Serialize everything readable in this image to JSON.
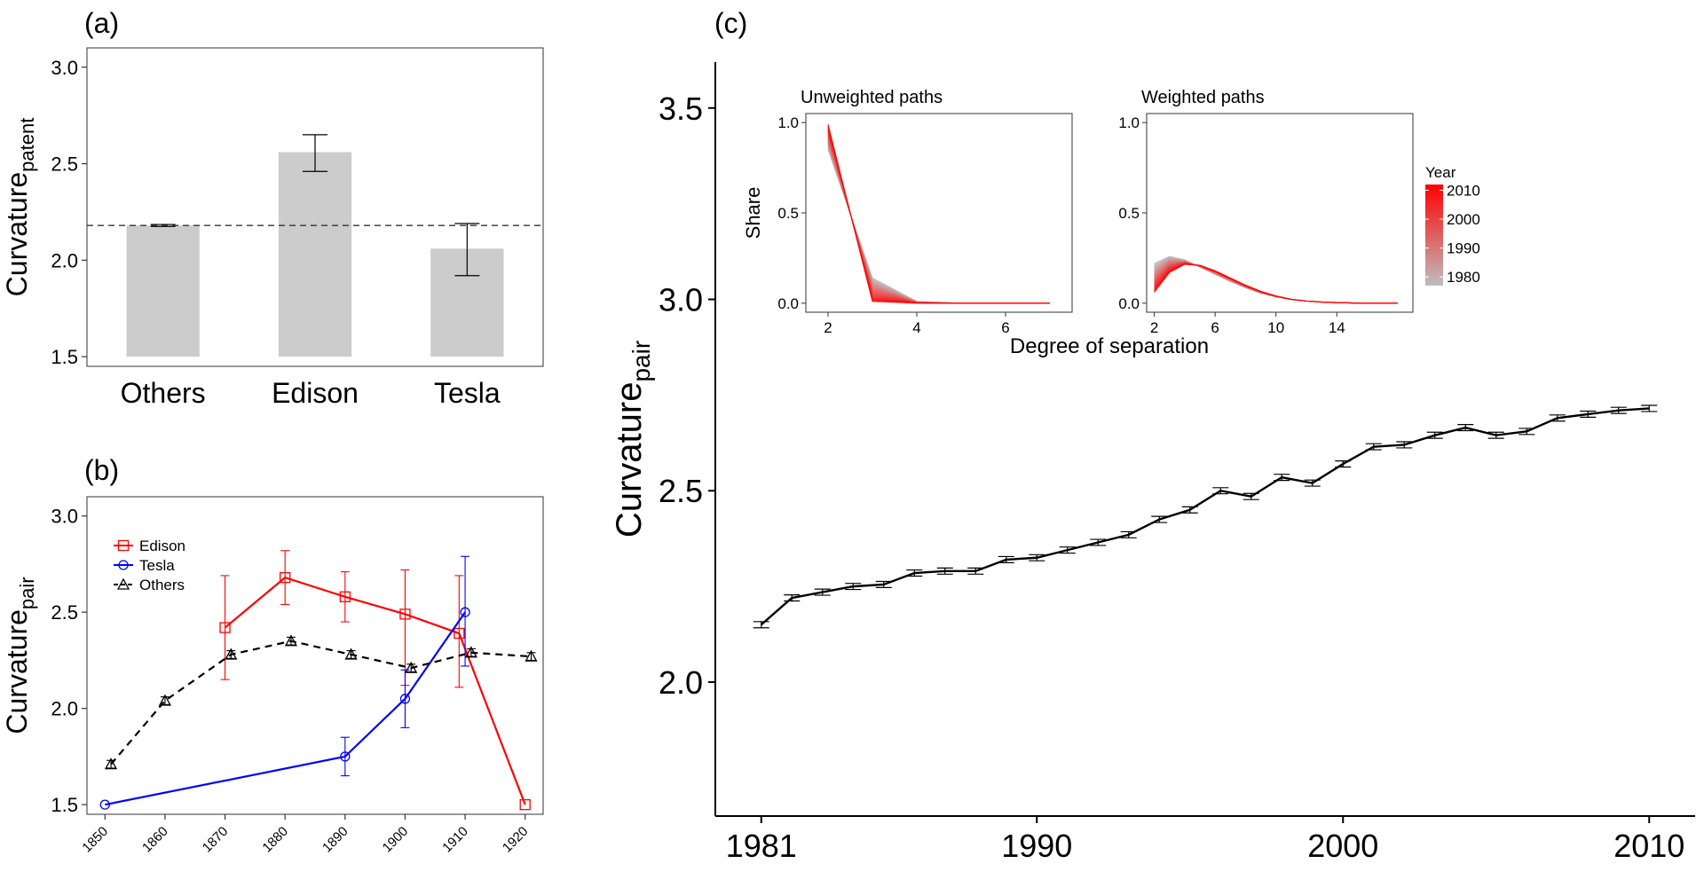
{
  "chart_data": [
    {
      "id": "a",
      "panel_label": "(a)",
      "type": "bar",
      "ylabel_main": "Curvature",
      "ylabel_sub": "patent",
      "categories": [
        "Others",
        "Edison",
        "Tesla"
      ],
      "values": [
        2.18,
        2.56,
        2.06
      ],
      "error_low": [
        2.175,
        2.46,
        1.92
      ],
      "error_high": [
        2.185,
        2.65,
        2.19
      ],
      "reference_line": 2.18,
      "ylim": [
        1.45,
        3.1
      ],
      "yticks": [
        1.5,
        2.0,
        2.5,
        3.0
      ],
      "ytick_labels": [
        "1.5",
        "2.0",
        "2.5",
        "3.0"
      ],
      "bar_color": "#cccccc"
    },
    {
      "id": "b",
      "panel_label": "(b)",
      "type": "line",
      "ylabel_main": "Curvature",
      "ylabel_sub": "pair",
      "xlim": [
        1847,
        1923
      ],
      "ylim": [
        1.45,
        3.1
      ],
      "xticks": [
        1850,
        1860,
        1870,
        1880,
        1890,
        1900,
        1910,
        1920
      ],
      "xtick_labels": [
        "1850",
        "1860",
        "1870",
        "1880",
        "1890",
        "1900",
        "1910",
        "1920"
      ],
      "yticks": [
        1.5,
        2.0,
        2.5,
        3.0
      ],
      "ytick_labels": [
        "1.5",
        "2.0",
        "2.5",
        "3.0"
      ],
      "legend_position": "top-left",
      "series": [
        {
          "name": "Edison",
          "color": "#ff0000",
          "marker": "square",
          "dash": "solid",
          "x": [
            1870,
            1880,
            1890,
            1900,
            1909,
            1920
          ],
          "y": [
            2.42,
            2.68,
            2.58,
            2.49,
            2.39,
            1.5
          ],
          "err_low": [
            2.15,
            2.54,
            2.45,
            2.12,
            2.11,
            1.5
          ],
          "err_high": [
            2.69,
            2.82,
            2.71,
            2.72,
            2.69,
            1.5
          ]
        },
        {
          "name": "Tesla",
          "color": "#0000ff",
          "marker": "circle",
          "dash": "solid",
          "x": [
            1850,
            1890,
            1900,
            1910
          ],
          "y": [
            1.5,
            1.75,
            2.05,
            2.5
          ],
          "err_low": [
            1.5,
            1.65,
            1.9,
            2.22
          ],
          "err_high": [
            1.5,
            1.85,
            2.2,
            2.79
          ]
        },
        {
          "name": "Others",
          "color": "#000000",
          "marker": "triangle",
          "dash": "dashed",
          "x": [
            1851,
            1860,
            1871,
            1881,
            1891,
            1901,
            1911,
            1921
          ],
          "y": [
            1.71,
            2.04,
            2.28,
            2.35,
            2.28,
            2.21,
            2.29,
            2.27
          ],
          "err_low": [
            1.69,
            2.02,
            2.26,
            2.33,
            2.26,
            2.19,
            2.27,
            2.25
          ],
          "err_high": [
            1.73,
            2.06,
            2.3,
            2.37,
            2.3,
            2.23,
            2.31,
            2.29
          ]
        }
      ]
    },
    {
      "id": "c",
      "panel_label": "(c)",
      "type": "line",
      "ylabel_main": "Curvature",
      "ylabel_sub": "pair",
      "xlim": [
        1979.5,
        2011.5
      ],
      "ylim": [
        1.65,
        3.62
      ],
      "xticks": [
        1981,
        1990,
        2000,
        2010
      ],
      "xtick_labels": [
        "1981",
        "1990",
        "2000",
        "2010"
      ],
      "yticks": [
        2.0,
        2.5,
        3.0,
        3.5
      ],
      "ytick_labels": [
        "2.0",
        "2.5",
        "3.0",
        "3.5"
      ],
      "series": [
        {
          "name": "Curvature pair",
          "color": "#000000",
          "x": [
            1981,
            1982,
            1983,
            1984,
            1985,
            1986,
            1987,
            1988,
            1989,
            1990,
            1991,
            1992,
            1993,
            1994,
            1995,
            1996,
            1997,
            1998,
            1999,
            2000,
            2001,
            2002,
            2003,
            2004,
            2005,
            2006,
            2007,
            2008,
            2009,
            2010
          ],
          "y": [
            2.15,
            2.22,
            2.235,
            2.25,
            2.255,
            2.285,
            2.29,
            2.29,
            2.32,
            2.325,
            2.345,
            2.365,
            2.385,
            2.425,
            2.45,
            2.5,
            2.485,
            2.535,
            2.52,
            2.57,
            2.615,
            2.62,
            2.645,
            2.665,
            2.645,
            2.655,
            2.69,
            2.7,
            2.71,
            2.715
          ],
          "err_half": [
            0.008,
            0.008,
            0.008,
            0.008,
            0.008,
            0.008,
            0.008,
            0.008,
            0.008,
            0.008,
            0.008,
            0.008,
            0.008,
            0.008,
            0.008,
            0.008,
            0.008,
            0.008,
            0.008,
            0.008,
            0.008,
            0.008,
            0.008,
            0.008,
            0.008,
            0.008,
            0.008,
            0.008,
            0.008,
            0.008
          ]
        }
      ],
      "insets": {
        "xlabel": "Degree of separation",
        "ylabel": "Share",
        "legend_title": "Year",
        "legend_labels": [
          "2010",
          "2000",
          "1990",
          "1980"
        ],
        "legend_values": [
          2010,
          2000,
          1990,
          1980
        ],
        "color_low": "#bebebe",
        "color_high": "#ff0000",
        "panels": [
          {
            "id": "unweighted",
            "title": "Unweighted paths",
            "xlim": [
              1.5,
              7.5
            ],
            "ylim": [
              -0.05,
              1.05
            ],
            "xticks": [
              2,
              4,
              6
            ],
            "xtick_labels": [
              "2",
              "4",
              "6"
            ],
            "yticks": [
              0.0,
              0.5,
              1.0
            ],
            "ytick_labels": [
              "0.0",
              "0.5",
              "1.0"
            ],
            "series_early": {
              "year": 1980,
              "x": [
                2,
                3,
                4,
                5,
                6,
                7
              ],
              "y": [
                0.85,
                0.14,
                0.01,
                0.0,
                0.0,
                0.0
              ]
            },
            "series_late": {
              "year": 2010,
              "x": [
                2,
                3,
                4,
                5,
                6,
                7
              ],
              "y": [
                0.99,
                0.01,
                0.0,
                0.0,
                0.0,
                0.0
              ]
            }
          },
          {
            "id": "weighted",
            "title": "Weighted paths",
            "xlim": [
              1.5,
              19
            ],
            "ylim": [
              -0.05,
              1.05
            ],
            "xticks": [
              2,
              6,
              10,
              14
            ],
            "xtick_labels": [
              "2",
              "6",
              "10",
              "14"
            ],
            "yticks": [
              0.0,
              0.5,
              1.0
            ],
            "ytick_labels": [
              "0.0",
              "0.5",
              "1.0"
            ],
            "series_early": {
              "year": 1980,
              "x": [
                2,
                3,
                4,
                5,
                6,
                7,
                8,
                9,
                10,
                11,
                12,
                13,
                14,
                15,
                16,
                17,
                18
              ],
              "y": [
                0.22,
                0.26,
                0.24,
                0.2,
                0.16,
                0.12,
                0.085,
                0.055,
                0.035,
                0.02,
                0.012,
                0.007,
                0.004,
                0.002,
                0.001,
                0.0,
                0.0
              ]
            },
            "series_late": {
              "year": 2010,
              "x": [
                2,
                3,
                4,
                5,
                6,
                7,
                8,
                9,
                10,
                11,
                12,
                13,
                14,
                15,
                16,
                17,
                18
              ],
              "y": [
                0.06,
                0.17,
                0.215,
                0.21,
                0.18,
                0.14,
                0.1,
                0.066,
                0.04,
                0.022,
                0.012,
                0.006,
                0.003,
                0.001,
                0.0,
                0.0,
                0.0
              ]
            }
          }
        ]
      }
    }
  ]
}
